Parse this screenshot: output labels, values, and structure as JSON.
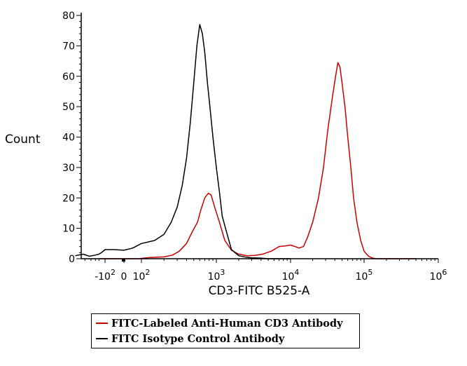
{
  "chart_data": {
    "type": "line",
    "title": "",
    "xlabel": "CD3-FITC B525-A",
    "ylabel": "Count",
    "x_scale": "biexponential",
    "ylim": [
      0,
      80
    ],
    "y_ticks": [
      0,
      10,
      20,
      30,
      40,
      50,
      60,
      70,
      80
    ],
    "x_ticks": [
      {
        "label": "-10",
        "sup": "2",
        "value": -100
      },
      {
        "label": "0",
        "sup": "",
        "value": 0
      },
      {
        "label": "10",
        "sup": "2",
        "value": 100
      },
      {
        "label": "10",
        "sup": "3",
        "value": 1000
      },
      {
        "label": "10",
        "sup": "4",
        "value": 10000
      },
      {
        "label": "10",
        "sup": "5",
        "value": 100000
      },
      {
        "label": "10",
        "sup": "6",
        "value": 1000000
      }
    ],
    "legend_position": "bottom",
    "series": [
      {
        "name": "FITC-Labeled Anti-Human CD3 Antibody",
        "color": "#cc0000",
        "x": [
          -200,
          -80,
          0,
          80,
          130,
          200,
          260,
          320,
          400,
          480,
          560,
          620,
          700,
          780,
          850,
          950,
          1100,
          1300,
          1600,
          2000,
          2600,
          3300,
          4200,
          5500,
          7000,
          8500,
          10000,
          11500,
          13000,
          15000,
          17000,
          20000,
          24000,
          28000,
          32000,
          37000,
          41000,
          44000,
          47000,
          50000,
          55000,
          60000,
          66000,
          72000,
          80000,
          90000,
          100000,
          115000,
          130000,
          150000,
          200000,
          500000
        ],
        "values": [
          0,
          0,
          0,
          0,
          0.4,
          0.6,
          1.2,
          2.5,
          5,
          9,
          12,
          16,
          20,
          21.5,
          21,
          17,
          12,
          6,
          2.8,
          1.5,
          1,
          1.1,
          1.5,
          2.5,
          4,
          4.2,
          4.5,
          4,
          3.5,
          4,
          7,
          12,
          20,
          30,
          42,
          53,
          60,
          64.5,
          63,
          58,
          50,
          40,
          30,
          20,
          12,
          6,
          2.5,
          0.8,
          0.2,
          0,
          0,
          0
        ]
      },
      {
        "name": "FITC Isotype Control Antibody",
        "color": "#000000",
        "x": [
          -3000,
          -1200,
          -600,
          -300,
          -200,
          -150,
          -100,
          -50,
          0,
          50,
          100,
          150,
          200,
          250,
          300,
          350,
          400,
          450,
          500,
          550,
          600,
          650,
          700,
          760,
          820,
          900,
          1000,
          1100,
          1200,
          1400,
          1600,
          2000,
          2500,
          3000,
          4000,
          5000,
          7000,
          10000
        ],
        "values": [
          1,
          1.5,
          0.8,
          1.2,
          1.5,
          2,
          3,
          3,
          2.8,
          3.5,
          5,
          6,
          8,
          12,
          17,
          24,
          33,
          45,
          58,
          70,
          77,
          74,
          68,
          58,
          50,
          40,
          30,
          22,
          14,
          8,
          3,
          1,
          0.5,
          0.3,
          0.2,
          0,
          0,
          0
        ]
      }
    ]
  }
}
